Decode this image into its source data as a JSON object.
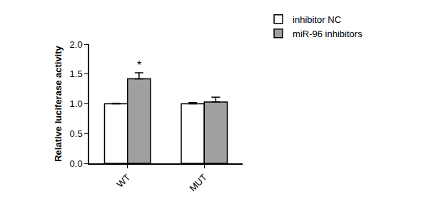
{
  "chart_data": {
    "type": "bar",
    "y_label": "Relative luciferase activity",
    "categories": [
      "WT",
      "MUT"
    ],
    "series": [
      {
        "name": "inhibitor NC",
        "color": "#ffffff",
        "values": [
          1.0,
          1.0
        ],
        "errors": [
          0.01,
          0.02
        ]
      },
      {
        "name": "miR-96 inhibitors",
        "color": "#a0a0a0",
        "values": [
          1.42,
          1.03
        ],
        "errors": [
          0.1,
          0.08
        ]
      }
    ],
    "ylim": [
      0,
      2
    ],
    "yticks": [
      {
        "value": 0,
        "label": "0.0"
      },
      {
        "value": 0.5,
        "label": "0.5"
      },
      {
        "value": 1,
        "label": "1.0"
      },
      {
        "value": 1.5,
        "label": "1.5"
      },
      {
        "value": 2,
        "label": "2.0"
      }
    ],
    "grid": false,
    "legend": "top-right",
    "annotations": [
      {
        "text": "*",
        "category": "WT",
        "series": "miR-96 inhibitors"
      }
    ]
  }
}
